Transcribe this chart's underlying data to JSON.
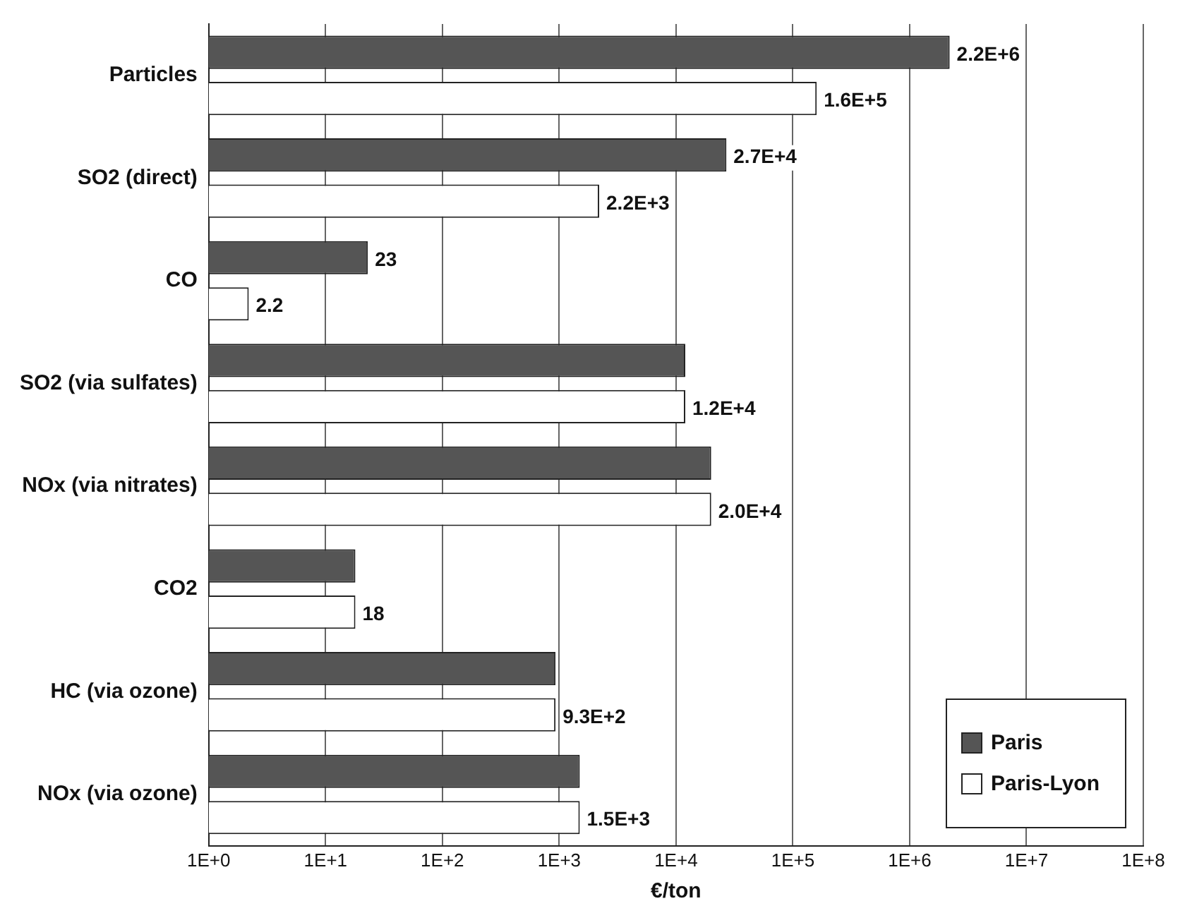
{
  "chart_data": {
    "type": "bar",
    "orientation": "horizontal",
    "log": "x",
    "xlabel": "€/ton",
    "categories": [
      "Particles",
      "SO2 (direct)",
      "CO",
      "SO2 (via sulfates)",
      "NOx (via nitrates)",
      "CO2",
      "HC (via ozone)",
      "NOx (via ozone)"
    ],
    "series": [
      {
        "name": "Paris",
        "color": "#555555",
        "values": [
          2200000,
          27000,
          23,
          12000,
          20000,
          18,
          930,
          1500
        ],
        "value_labels": [
          "2.2E+6",
          "2.7E+4",
          "23",
          null,
          null,
          null,
          null,
          null
        ]
      },
      {
        "name": "Paris-Lyon",
        "color": "#ffffff",
        "values": [
          160000,
          2200,
          2.2,
          12000,
          20000,
          18,
          930,
          1500
        ],
        "value_labels": [
          "1.6E+5",
          "2.2E+3",
          "2.2",
          "1.2E+4",
          "2.0E+4",
          "18",
          "9.3E+2",
          "1.5E+3"
        ]
      }
    ],
    "xlim": [
      1,
      100000000
    ],
    "xticks": [
      {
        "value": 1,
        "label": "1E+0"
      },
      {
        "value": 10,
        "label": "1E+1"
      },
      {
        "value": 100,
        "label": "1E+2"
      },
      {
        "value": 1000,
        "label": "1E+3"
      },
      {
        "value": 10000,
        "label": "1E+4"
      },
      {
        "value": 100000,
        "label": "1E+5"
      },
      {
        "value": 1000000,
        "label": "1E+6"
      },
      {
        "value": 10000000,
        "label": "1E+7"
      },
      {
        "value": 100000000,
        "label": "1E+8"
      }
    ],
    "grid": "x",
    "legend": "bottom right"
  }
}
